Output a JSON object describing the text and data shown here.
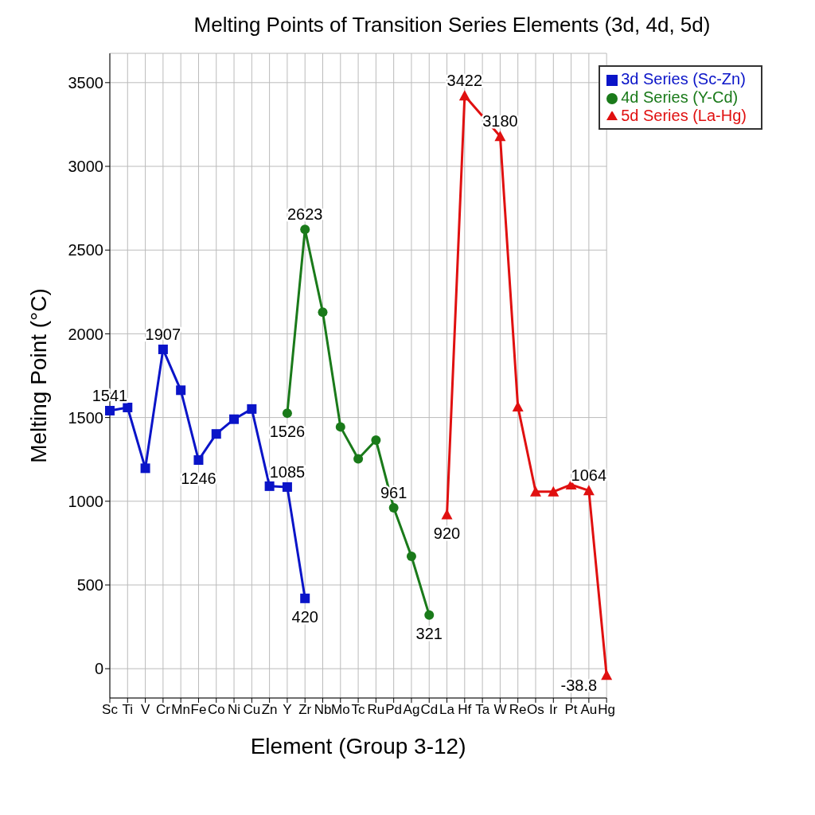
{
  "chart_data": {
    "type": "line",
    "title": "Melting Points of Transition Series Elements (3d, 4d, 5d)",
    "xlabel": "Element (Group 3-12)",
    "ylabel": "Melting Point (°C)",
    "categories": [
      "Sc",
      "Ti",
      "V",
      "Cr",
      "Mn",
      "Fe",
      "Co",
      "Ni",
      "Cu",
      "Zn",
      "Y",
      "Zr",
      "Nb",
      "Mo",
      "Tc",
      "Ru",
      "Pd",
      "Ag",
      "Cd",
      "La",
      "Hf",
      "Ta",
      "W",
      "Re",
      "Os",
      "Ir",
      "Pt",
      "Au",
      "Hg"
    ],
    "series": [
      {
        "name": "3d Series (Sc-Zn)",
        "color": "#0a14c8",
        "marker": "square",
        "values": [
          1541,
          1560,
          1197,
          1907,
          1663,
          1246,
          1402,
          1490,
          1551,
          1090,
          1085,
          420,
          null,
          null,
          null,
          null,
          null,
          null,
          null,
          null,
          null,
          null,
          null,
          null,
          null,
          null,
          null,
          null,
          null
        ],
        "value_labels": [
          "1541",
          null,
          null,
          "1907",
          null,
          "1246",
          null,
          null,
          null,
          null,
          "1085",
          "420",
          null,
          null,
          null,
          null,
          null,
          null,
          null,
          null,
          null,
          null,
          null,
          null,
          null,
          null,
          null,
          null,
          null
        ]
      },
      {
        "name": "4d Series (Y-Cd)",
        "color": "#1a7a1a",
        "marker": "circle",
        "values": [
          null,
          null,
          null,
          null,
          null,
          null,
          null,
          null,
          null,
          null,
          1526,
          2623,
          2129,
          1444,
          1253,
          1365,
          961,
          671,
          321,
          null,
          null,
          null,
          null,
          null,
          null,
          null,
          null,
          null,
          null
        ],
        "value_labels": [
          null,
          null,
          null,
          null,
          null,
          null,
          null,
          null,
          null,
          null,
          "1526",
          "2623",
          null,
          null,
          null,
          null,
          "961",
          null,
          "321",
          null,
          null,
          null,
          null,
          null,
          null,
          null,
          null,
          null,
          null
        ]
      },
      {
        "name": "5d Series (La-Hg)",
        "color": "#e01010",
        "marker": "triangle",
        "values": [
          null,
          null,
          null,
          null,
          null,
          null,
          null,
          null,
          null,
          null,
          null,
          null,
          null,
          null,
          null,
          null,
          null,
          null,
          null,
          920,
          3422,
          null,
          3180,
          1565,
          1057,
          1057,
          1099,
          1064,
          -38.8
        ],
        "value_labels": [
          null,
          null,
          null,
          null,
          null,
          null,
          null,
          null,
          null,
          null,
          null,
          null,
          null,
          null,
          null,
          null,
          null,
          null,
          null,
          "920",
          "3422",
          null,
          "3180",
          null,
          null,
          null,
          null,
          "1064",
          "-38.8"
        ]
      }
    ],
    "ylim": [
      -175,
      3675
    ],
    "yticks": [
      0,
      500,
      1000,
      1500,
      2000,
      2500,
      3000,
      3500
    ],
    "grid": true,
    "legend": "top right",
    "line_style": "solid"
  }
}
